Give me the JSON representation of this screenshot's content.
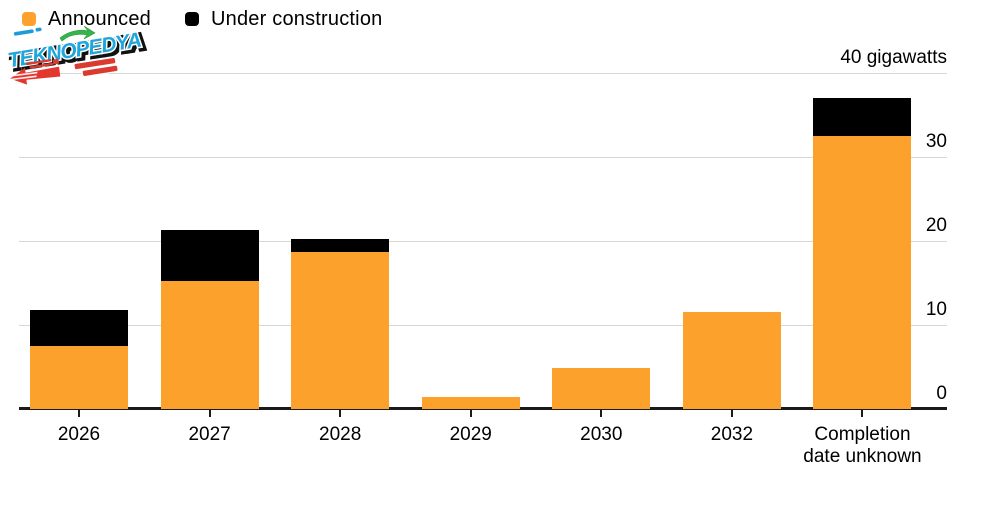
{
  "legend": {
    "items": [
      {
        "label": "Announced",
        "color": "#FCA12C"
      },
      {
        "label": "Under construction",
        "color": "#000000"
      }
    ]
  },
  "watermark": {
    "title": "TEKNOPEDYA"
  },
  "chart_data": {
    "type": "bar",
    "stacked": true,
    "title": "",
    "xlabel": "",
    "ylabel": "gigawatts",
    "unit_label": "40 gigawatts",
    "categories": [
      "2026",
      "2027",
      "2028",
      "2029",
      "2030",
      "2032",
      "Completion date unknown"
    ],
    "series": [
      {
        "name": "Announced",
        "color": "#FCA12C",
        "values": [
          7.5,
          15.2,
          18.7,
          1.4,
          4.9,
          11.6,
          32.5
        ]
      },
      {
        "name": "Under construction",
        "color": "#000000",
        "values": [
          4.3,
          6.1,
          1.5,
          0,
          0,
          0,
          4.5
        ]
      }
    ],
    "ylim": [
      0,
      40
    ],
    "yticks": [
      0,
      10,
      20,
      30,
      40
    ],
    "ytick_labels": [
      "0",
      "10",
      "20",
      "30",
      "40 gigawatts"
    ],
    "grid": "horizontal",
    "legend_position": "top-left",
    "colors": {
      "gridline": "#D8D8D8",
      "axis": "#1A1A1A",
      "text": "#000000",
      "background": "#FFFFFF"
    }
  }
}
